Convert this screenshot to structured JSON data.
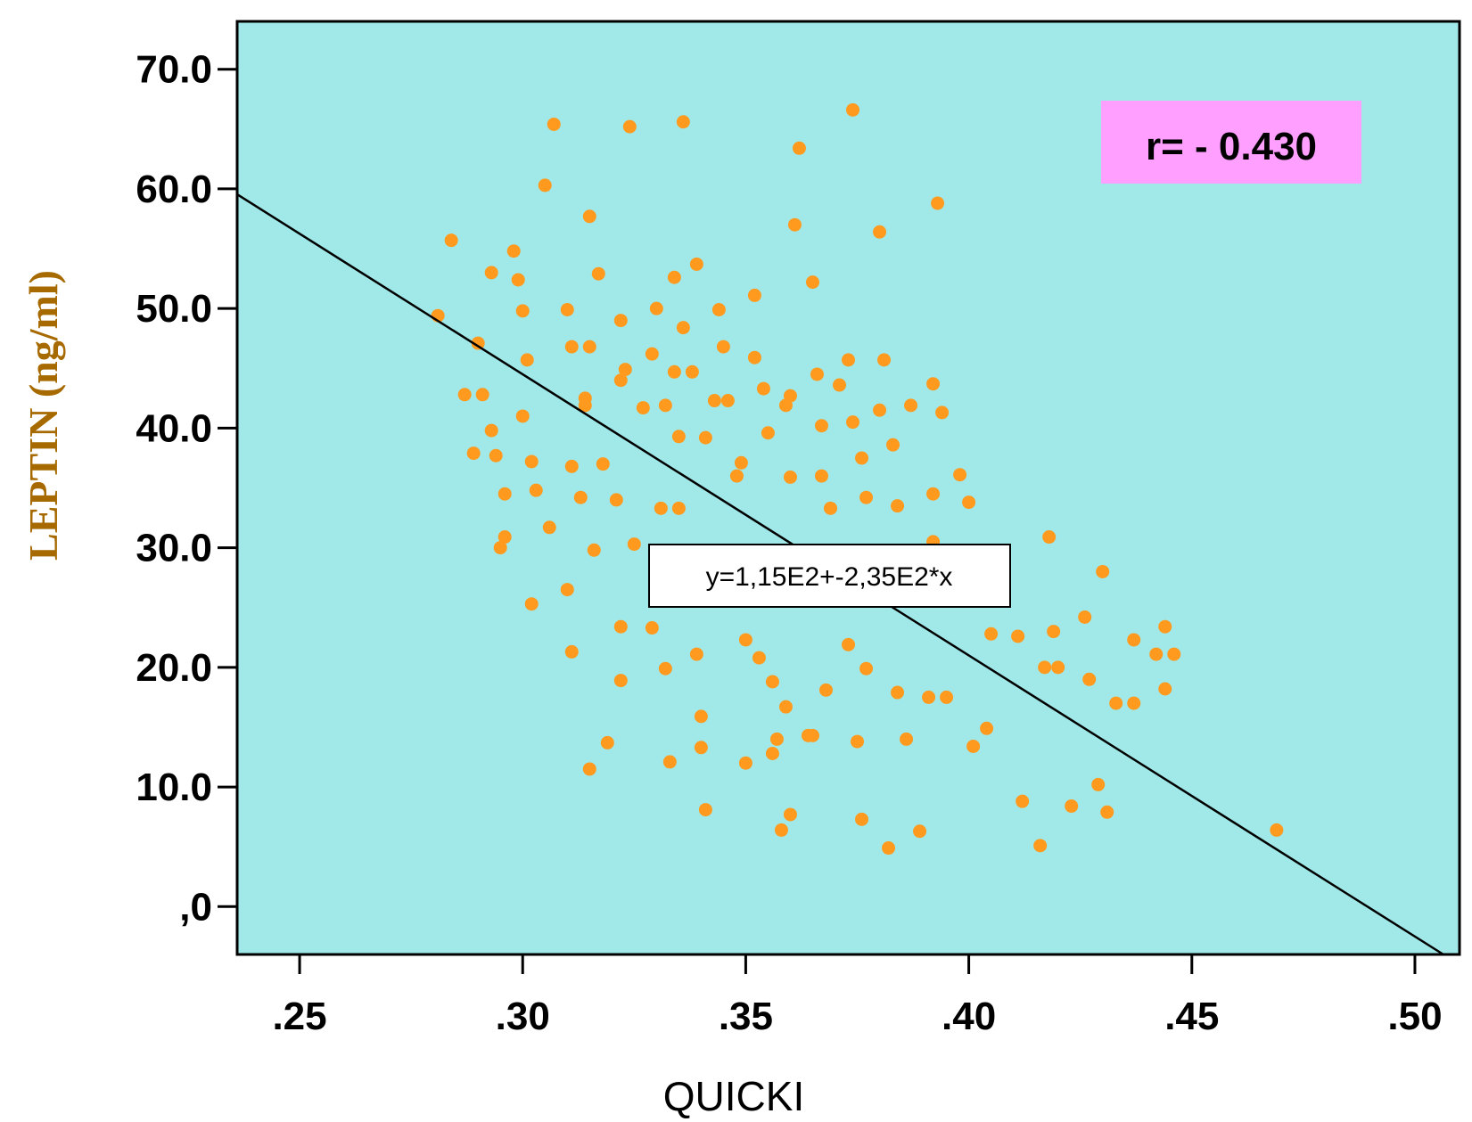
{
  "chart_data": {
    "type": "scatter",
    "xlabel": "QUICKI",
    "ylabel": "LEPTIN (ng/ml)",
    "xlim": [
      0.236,
      0.51
    ],
    "ylim": [
      -4,
      74
    ],
    "x_ticks": [
      0.25,
      0.3,
      0.35,
      0.4,
      0.45,
      0.5
    ],
    "x_tick_labels": [
      ".25",
      ".30",
      ".35",
      ".40",
      ".45",
      ".50"
    ],
    "y_ticks": [
      0,
      10,
      20,
      30,
      40,
      50,
      60,
      70
    ],
    "y_tick_labels": [
      ",0",
      "10.0",
      "20.0",
      "30.0",
      "40.0",
      "50.0",
      "60.0",
      "70.0"
    ],
    "fit_line": {
      "intercept": 115,
      "slope": -235,
      "label": "y=1,15E2+-2,35E2*x"
    },
    "correlation_label": "r= - 0.430",
    "colors": {
      "plot_background": "#a1e9e9",
      "point": "#ff9a1e",
      "ylabel": "#a66a00",
      "r_box": "#ff9fff"
    },
    "points": [
      [
        0.281,
        49.4
      ],
      [
        0.284,
        55.7
      ],
      [
        0.287,
        42.8
      ],
      [
        0.289,
        37.9
      ],
      [
        0.29,
        47.1
      ],
      [
        0.291,
        42.8
      ],
      [
        0.293,
        53.0
      ],
      [
        0.293,
        39.8
      ],
      [
        0.294,
        37.7
      ],
      [
        0.295,
        30.0
      ],
      [
        0.296,
        34.5
      ],
      [
        0.296,
        30.9
      ],
      [
        0.298,
        54.8
      ],
      [
        0.299,
        52.4
      ],
      [
        0.3,
        49.8
      ],
      [
        0.3,
        41.0
      ],
      [
        0.301,
        45.7
      ],
      [
        0.302,
        37.2
      ],
      [
        0.302,
        25.3
      ],
      [
        0.303,
        34.8
      ],
      [
        0.305,
        60.3
      ],
      [
        0.306,
        31.7
      ],
      [
        0.307,
        65.4
      ],
      [
        0.31,
        49.9
      ],
      [
        0.31,
        26.5
      ],
      [
        0.311,
        46.8
      ],
      [
        0.311,
        36.8
      ],
      [
        0.311,
        21.3
      ],
      [
        0.313,
        34.2
      ],
      [
        0.314,
        41.9
      ],
      [
        0.314,
        42.5
      ],
      [
        0.315,
        57.7
      ],
      [
        0.315,
        46.8
      ],
      [
        0.315,
        11.5
      ],
      [
        0.316,
        29.8
      ],
      [
        0.317,
        52.9
      ],
      [
        0.318,
        37.0
      ],
      [
        0.319,
        13.7
      ],
      [
        0.321,
        34.0
      ],
      [
        0.322,
        44.0
      ],
      [
        0.322,
        23.4
      ],
      [
        0.322,
        18.9
      ],
      [
        0.322,
        49.0
      ],
      [
        0.323,
        44.9
      ],
      [
        0.324,
        65.2
      ],
      [
        0.325,
        30.3
      ],
      [
        0.327,
        41.7
      ],
      [
        0.329,
        23.3
      ],
      [
        0.329,
        46.2
      ],
      [
        0.33,
        50.0
      ],
      [
        0.331,
        33.3
      ],
      [
        0.332,
        41.9
      ],
      [
        0.332,
        19.9
      ],
      [
        0.333,
        12.1
      ],
      [
        0.334,
        52.6
      ],
      [
        0.334,
        44.7
      ],
      [
        0.335,
        39.3
      ],
      [
        0.335,
        33.3
      ],
      [
        0.336,
        48.4
      ],
      [
        0.336,
        65.6
      ],
      [
        0.338,
        44.7
      ],
      [
        0.339,
        53.7
      ],
      [
        0.339,
        21.1
      ],
      [
        0.34,
        15.9
      ],
      [
        0.34,
        13.3
      ],
      [
        0.341,
        8.1
      ],
      [
        0.341,
        39.2
      ],
      [
        0.343,
        42.3
      ],
      [
        0.344,
        49.9
      ],
      [
        0.345,
        46.8
      ],
      [
        0.346,
        42.3
      ],
      [
        0.348,
        36.0
      ],
      [
        0.349,
        37.1
      ],
      [
        0.35,
        22.3
      ],
      [
        0.35,
        12.0
      ],
      [
        0.352,
        51.1
      ],
      [
        0.352,
        45.9
      ],
      [
        0.353,
        20.8
      ],
      [
        0.354,
        43.3
      ],
      [
        0.355,
        39.6
      ],
      [
        0.356,
        18.8
      ],
      [
        0.356,
        12.8
      ],
      [
        0.357,
        14.0
      ],
      [
        0.358,
        6.4
      ],
      [
        0.359,
        16.7
      ],
      [
        0.359,
        41.9
      ],
      [
        0.36,
        42.7
      ],
      [
        0.36,
        7.7
      ],
      [
        0.36,
        35.9
      ],
      [
        0.361,
        57.0
      ],
      [
        0.362,
        63.4
      ],
      [
        0.364,
        14.3
      ],
      [
        0.365,
        14.3
      ],
      [
        0.365,
        52.2
      ],
      [
        0.366,
        44.5
      ],
      [
        0.367,
        36.0
      ],
      [
        0.367,
        40.2
      ],
      [
        0.368,
        18.1
      ],
      [
        0.369,
        33.3
      ],
      [
        0.371,
        43.6
      ],
      [
        0.373,
        21.9
      ],
      [
        0.373,
        45.7
      ],
      [
        0.374,
        40.5
      ],
      [
        0.374,
        66.6
      ],
      [
        0.375,
        13.8
      ],
      [
        0.376,
        7.3
      ],
      [
        0.376,
        37.5
      ],
      [
        0.377,
        19.9
      ],
      [
        0.377,
        34.2
      ],
      [
        0.38,
        56.4
      ],
      [
        0.38,
        41.5
      ],
      [
        0.381,
        45.7
      ],
      [
        0.382,
        4.9
      ],
      [
        0.383,
        38.6
      ],
      [
        0.384,
        33.5
      ],
      [
        0.384,
        17.9
      ],
      [
        0.386,
        14.0
      ],
      [
        0.387,
        41.9
      ],
      [
        0.389,
        6.3
      ],
      [
        0.391,
        17.5
      ],
      [
        0.392,
        34.5
      ],
      [
        0.392,
        30.5
      ],
      [
        0.392,
        43.7
      ],
      [
        0.393,
        58.8
      ],
      [
        0.394,
        41.3
      ],
      [
        0.395,
        17.5
      ],
      [
        0.398,
        36.1
      ],
      [
        0.4,
        33.8
      ],
      [
        0.401,
        13.4
      ],
      [
        0.404,
        14.9
      ],
      [
        0.405,
        22.8
      ],
      [
        0.411,
        22.6
      ],
      [
        0.412,
        8.8
      ],
      [
        0.416,
        5.1
      ],
      [
        0.417,
        20.0
      ],
      [
        0.418,
        30.9
      ],
      [
        0.419,
        23.0
      ],
      [
        0.42,
        20.0
      ],
      [
        0.423,
        8.4
      ],
      [
        0.426,
        24.2
      ],
      [
        0.427,
        19.0
      ],
      [
        0.429,
        10.2
      ],
      [
        0.43,
        28.0
      ],
      [
        0.431,
        7.9
      ],
      [
        0.433,
        17.0
      ],
      [
        0.437,
        22.3
      ],
      [
        0.437,
        17.0
      ],
      [
        0.442,
        21.1
      ],
      [
        0.444,
        23.4
      ],
      [
        0.444,
        18.2
      ],
      [
        0.446,
        21.1
      ],
      [
        0.469,
        6.4
      ]
    ]
  }
}
